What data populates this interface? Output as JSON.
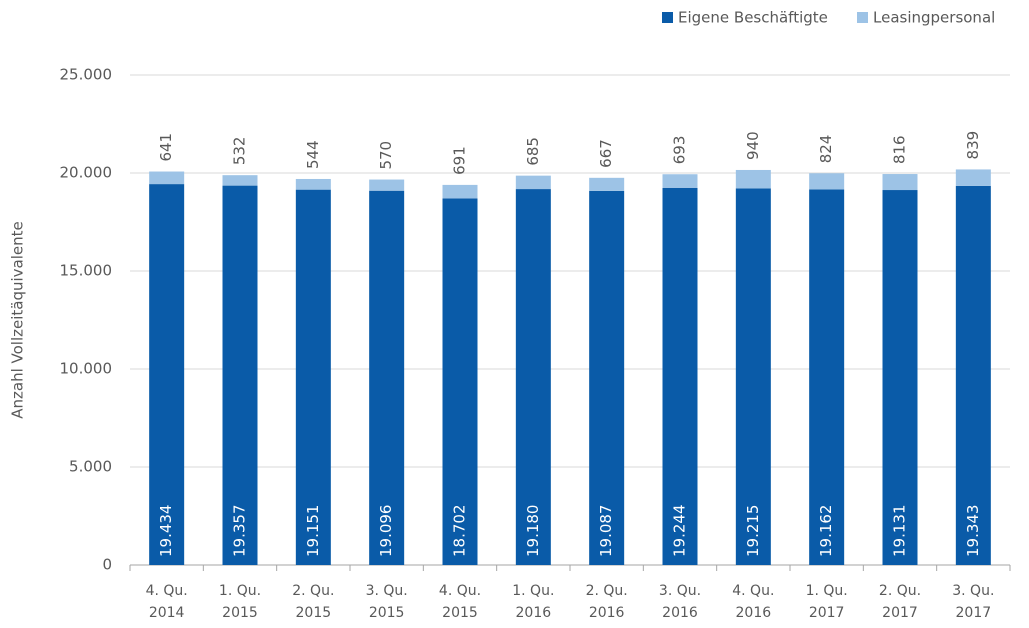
{
  "chart_data": {
    "type": "stacked_bar",
    "y_axis_label": "Anzahl Vollzeitäquivalente",
    "categories": [
      "4. Qu. 2014",
      "1. Qu. 2015",
      "2. Qu. 2015",
      "3. Qu. 2015",
      "4. Qu. 2015",
      "1. Qu. 2016",
      "2. Qu. 2016",
      "3. Qu. 2016",
      "4. Qu. 2016",
      "1. Qu. 2017",
      "2. Qu. 2017",
      "3. Qu. 2017"
    ],
    "series": [
      {
        "name": "Eigene Beschäftigte",
        "color": "#0a5ba8",
        "values": [
          19434,
          19357,
          19151,
          19096,
          18702,
          19180,
          19087,
          19244,
          19215,
          19162,
          19131,
          19343
        ],
        "value_labels": [
          "19.434",
          "19.357",
          "19.151",
          "19.096",
          "18.702",
          "19.180",
          "19.087",
          "19.244",
          "19.215",
          "19.162",
          "19.131",
          "19.343"
        ]
      },
      {
        "name": "Leasingpersonal",
        "color": "#9dc3e6",
        "values": [
          641,
          532,
          544,
          570,
          691,
          685,
          667,
          693,
          940,
          824,
          816,
          839
        ]
      }
    ],
    "ylim": [
      0,
      25000
    ],
    "yticks": [
      0,
      {
        "value": 5000,
        "label": "5.000"
      },
      {
        "value": 10000,
        "label": "10.000"
      },
      {
        "value": 15000,
        "label": "15.000"
      },
      {
        "value": 20000,
        "label": "20.000"
      },
      {
        "value": 25000,
        "label": "25.000"
      }
    ],
    "grid": true,
    "legend": "top-right"
  }
}
